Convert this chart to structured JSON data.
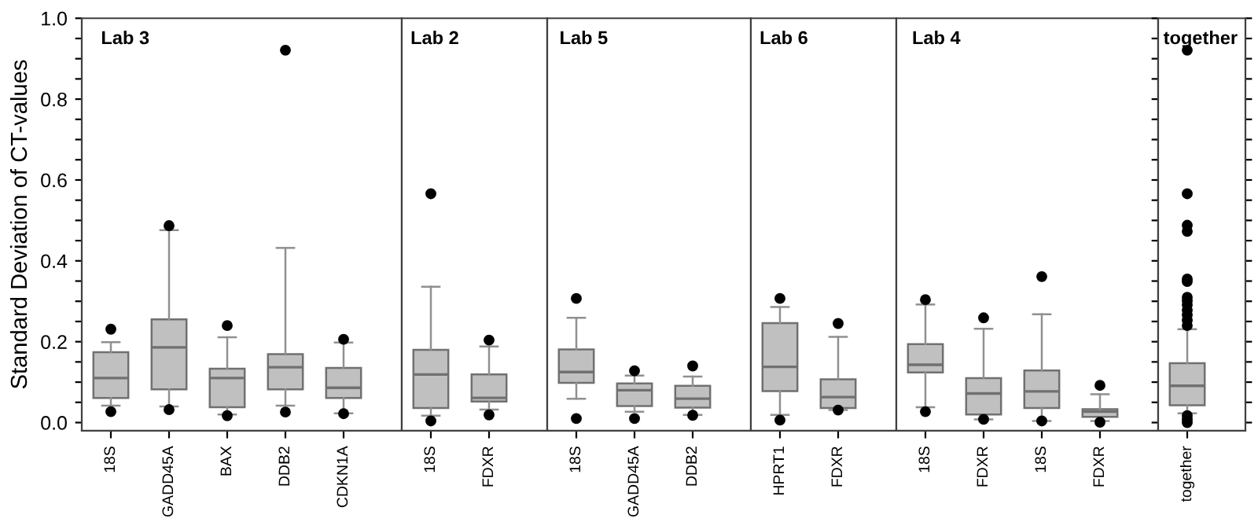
{
  "chart_data": [
    {
      "type": "box",
      "title": "Lab 3",
      "ylabel": "Standard Deviation of CT-values",
      "categories": [
        "18S",
        "GADD45A",
        "BAX",
        "DDB2",
        "CDKN1A"
      ],
      "color": "#c0c0c0",
      "ylim": [
        -0.02,
        1.0
      ],
      "yticks": [
        {
          "value": 0,
          "label": "0.0"
        },
        {
          "value": 0.05,
          "label": null
        },
        {
          "value": 0.1,
          "label": null
        },
        {
          "value": 0.15,
          "label": null
        },
        {
          "value": 0.2,
          "label": "0.2"
        },
        {
          "value": 0.25,
          "label": null
        },
        {
          "value": 0.3,
          "label": null
        },
        {
          "value": 0.35,
          "label": null
        },
        {
          "value": 0.4,
          "label": "0.4"
        },
        {
          "value": 0.45,
          "label": null
        },
        {
          "value": 0.5,
          "label": null
        },
        {
          "value": 0.55,
          "label": null
        },
        {
          "value": 0.6,
          "label": "0.6"
        },
        {
          "value": 0.65,
          "label": null
        },
        {
          "value": 0.7,
          "label": null
        },
        {
          "value": 0.75,
          "label": null
        },
        {
          "value": 0.8,
          "label": "0.8"
        },
        {
          "value": 0.85,
          "label": null
        },
        {
          "value": 0.9,
          "label": null
        },
        {
          "value": 0.95,
          "label": null
        },
        {
          "value": 1.0,
          "label": "1.0"
        }
      ],
      "boxes": [
        {
          "low": 0.042,
          "q1": 0.061,
          "median": 0.11,
          "q3": 0.174,
          "high": 0.199,
          "outliers": [
            0.231,
            0.027
          ]
        },
        {
          "low": 0.04,
          "q1": 0.082,
          "median": 0.186,
          "q3": 0.255,
          "high": 0.476,
          "outliers": [
            0.487,
            0.032
          ]
        },
        {
          "low": 0.02,
          "q1": 0.038,
          "median": 0.11,
          "q3": 0.133,
          "high": 0.211,
          "outliers": [
            0.24,
            0.017
          ]
        },
        {
          "low": 0.042,
          "q1": 0.082,
          "median": 0.137,
          "q3": 0.169,
          "high": 0.432,
          "outliers": [
            0.921,
            0.026
          ]
        },
        {
          "low": 0.023,
          "q1": 0.061,
          "median": 0.086,
          "q3": 0.135,
          "high": 0.198,
          "outliers": [
            0.206,
            0.022
          ]
        }
      ]
    },
    {
      "type": "box",
      "title": "Lab 2",
      "categories": [
        "18S",
        "FDXR"
      ],
      "color": "#c0c0c0",
      "ylim": [
        -0.02,
        1.0
      ],
      "tick_labels": "x",
      "boxes": [
        {
          "low": 0.017,
          "q1": 0.036,
          "median": 0.119,
          "q3": 0.18,
          "high": 0.336,
          "outliers": [
            0.566,
            0.004
          ]
        },
        {
          "low": 0.032,
          "q1": 0.052,
          "median": 0.061,
          "q3": 0.119,
          "high": 0.188,
          "outliers": [
            0.204,
            0.019
          ]
        }
      ]
    },
    {
      "type": "box",
      "title": "Lab 5",
      "categories": [
        "18S",
        "GADD45A",
        "DDB2"
      ],
      "color": "#c0c0c0",
      "ylim": [
        -0.02,
        1.0
      ],
      "tick_labels": "x",
      "boxes": [
        {
          "low": 0.059,
          "q1": 0.098,
          "median": 0.125,
          "q3": 0.181,
          "high": 0.259,
          "outliers": [
            0.307,
            0.01
          ]
        },
        {
          "low": 0.027,
          "q1": 0.041,
          "median": 0.08,
          "q3": 0.097,
          "high": 0.116,
          "outliers": [
            0.128,
            0.01
          ]
        },
        {
          "low": 0.019,
          "q1": 0.037,
          "median": 0.059,
          "q3": 0.091,
          "high": 0.114,
          "outliers": [
            0.14,
            0.018
          ]
        }
      ]
    },
    {
      "type": "box",
      "title": "Lab 6",
      "categories": [
        "HPRT1",
        "FDXR"
      ],
      "color": "#c0c0c0",
      "ylim": [
        -0.02,
        1.0
      ],
      "tick_labels": "x",
      "boxes": [
        {
          "low": 0.019,
          "q1": 0.078,
          "median": 0.138,
          "q3": 0.246,
          "high": 0.286,
          "outliers": [
            0.307,
            0.006
          ]
        },
        {
          "low": 0.031,
          "q1": 0.036,
          "median": 0.063,
          "q3": 0.107,
          "high": 0.212,
          "outliers": [
            0.245,
            0.031
          ]
        }
      ]
    },
    {
      "type": "box",
      "title": "Lab 4",
      "categories": [
        "18S",
        "FDXR",
        "18S",
        "FDXR"
      ],
      "color": "#c0c0c0",
      "ylim": [
        -0.02,
        1.0
      ],
      "tick_labels": "x",
      "boxes": [
        {
          "low": 0.038,
          "q1": 0.124,
          "median": 0.143,
          "q3": 0.194,
          "high": 0.292,
          "outliers": [
            0.304,
            0.027
          ]
        },
        {
          "low": 0.008,
          "q1": 0.02,
          "median": 0.072,
          "q3": 0.11,
          "high": 0.232,
          "outliers": [
            0.259,
            0.008
          ]
        },
        {
          "low": 0.004,
          "q1": 0.036,
          "median": 0.077,
          "q3": 0.129,
          "high": 0.268,
          "outliers": [
            0.361,
            0.004
          ]
        },
        {
          "low": 0.004,
          "q1": 0.014,
          "median": 0.027,
          "q3": 0.033,
          "high": 0.07,
          "outliers": [
            0.092,
            0.001
          ]
        }
      ]
    },
    {
      "type": "box",
      "title": "together",
      "categories": [
        "together"
      ],
      "color": "#c0c0c0",
      "ylim": [
        -0.02,
        1.0
      ],
      "tick_labels": "x",
      "boxes": [
        {
          "low": 0.023,
          "q1": 0.043,
          "median": 0.091,
          "q3": 0.147,
          "high": 0.231,
          "outliers": [
            0.921,
            0.566,
            0.488,
            0.473,
            0.355,
            0.349,
            0.31,
            0.301,
            0.291,
            0.278,
            0.266,
            0.253,
            0.24,
            0.017,
            0.008,
            0.0
          ]
        }
      ]
    }
  ]
}
